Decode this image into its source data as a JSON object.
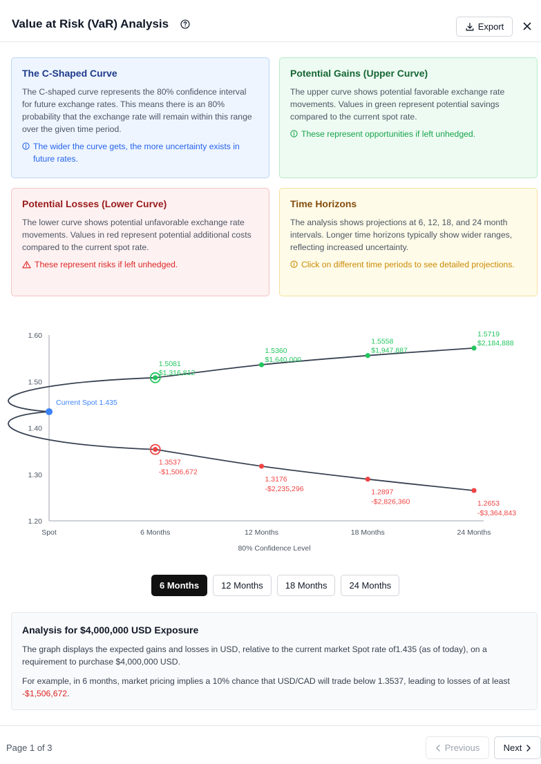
{
  "header": {
    "title": "Value at Risk (VaR) Analysis",
    "export_label": "Export"
  },
  "cards": {
    "c_curve": {
      "title": "The C-Shaped Curve",
      "body": "The C-shaped curve represents the 80% confidence interval for future exchange rates. This means there is an 80% probability that the exchange rate will remain within this range over the given time period.",
      "note": "The wider the curve gets, the more uncertainty exists in future rates."
    },
    "gains": {
      "title": "Potential Gains (Upper Curve)",
      "body": "The upper curve shows potential favorable exchange rate movements. Values in green represent potential savings compared to the current spot rate.",
      "note": "These represent opportunities if left unhedged."
    },
    "losses": {
      "title": "Potential Losses (Lower Curve)",
      "body": "The lower curve shows potential unfavorable exchange rate movements. Values in red represent potential additional costs compared to the current spot rate.",
      "note": "These represent risks if left unhedged."
    },
    "horizons": {
      "title": "Time Horizons",
      "body": "The analysis shows projections at 6, 12, 18, and 24 month intervals. Longer time horizons typically show wider ranges, reflecting increased uncertainty.",
      "note": "Click on different time periods to see detailed projections."
    }
  },
  "chart_data": {
    "type": "line",
    "categories": [
      "Spot",
      "6 Months",
      "12 Months",
      "18 Months",
      "24 Months"
    ],
    "xlabel": "80% Confidence Level",
    "ylabel": "",
    "ylim": [
      1.2,
      1.6
    ],
    "yticks": [
      "1.20",
      "1.30",
      "1.40",
      "1.50",
      "1.60"
    ],
    "spot": {
      "value": 1.435,
      "label": "Current Spot 1.435"
    },
    "series": [
      {
        "name": "",
        "color": "#22c55e",
        "values": [
          1.435,
          1.5081,
          1.536,
          1.5558,
          1.5719
        ],
        "labels": [
          "",
          "1.5081",
          "1.5360",
          "1.5558",
          "1.5719"
        ],
        "amounts": [
          "",
          "$1,316,812",
          "$1,640,000",
          "$1,947,887",
          "$2,184,888"
        ]
      },
      {
        "name": "",
        "color": "#ef4444",
        "values": [
          1.435,
          1.3537,
          1.3176,
          1.2897,
          1.2653
        ],
        "labels": [
          "",
          "1.3537",
          "1.3176",
          "1.2897",
          "1.2653"
        ],
        "amounts": [
          "",
          "-$1,506,672",
          "-$2,235,296",
          "-$2,826,360",
          "-$3,364,843"
        ]
      }
    ],
    "selected_index": 1
  },
  "tabs": [
    "6 Months",
    "12 Months",
    "18 Months",
    "24 Months"
  ],
  "analysis": {
    "title": "Analysis for $4,000,000 USD Exposure",
    "p1": "The graph displays the expected gains and losses in USD, relative to the current market Spot rate of1.435 (as of today), on a requirement to purchase $4,000,000 USD.",
    "p2_prefix": "For example, in 6 months, market pricing implies a 10% chance that USD/CAD will trade below 1.3537, leading to losses of at least ",
    "p2_amount": "-$1,506,672",
    "p2_suffix": "."
  },
  "footer": {
    "page_info": "Page 1 of 3",
    "previous_label": "Previous",
    "next_label": "Next"
  },
  "colors": {
    "gain": "#22c55e",
    "loss": "#ef4444",
    "spot": "#3b82f6",
    "curve": "#374151"
  },
  "icons": {
    "help": "help-circle-icon",
    "export": "download-icon",
    "close": "close-icon",
    "info": "info-icon",
    "warning": "warning-triangle-icon",
    "prev": "chevron-left-icon",
    "next": "chevron-right-icon"
  }
}
